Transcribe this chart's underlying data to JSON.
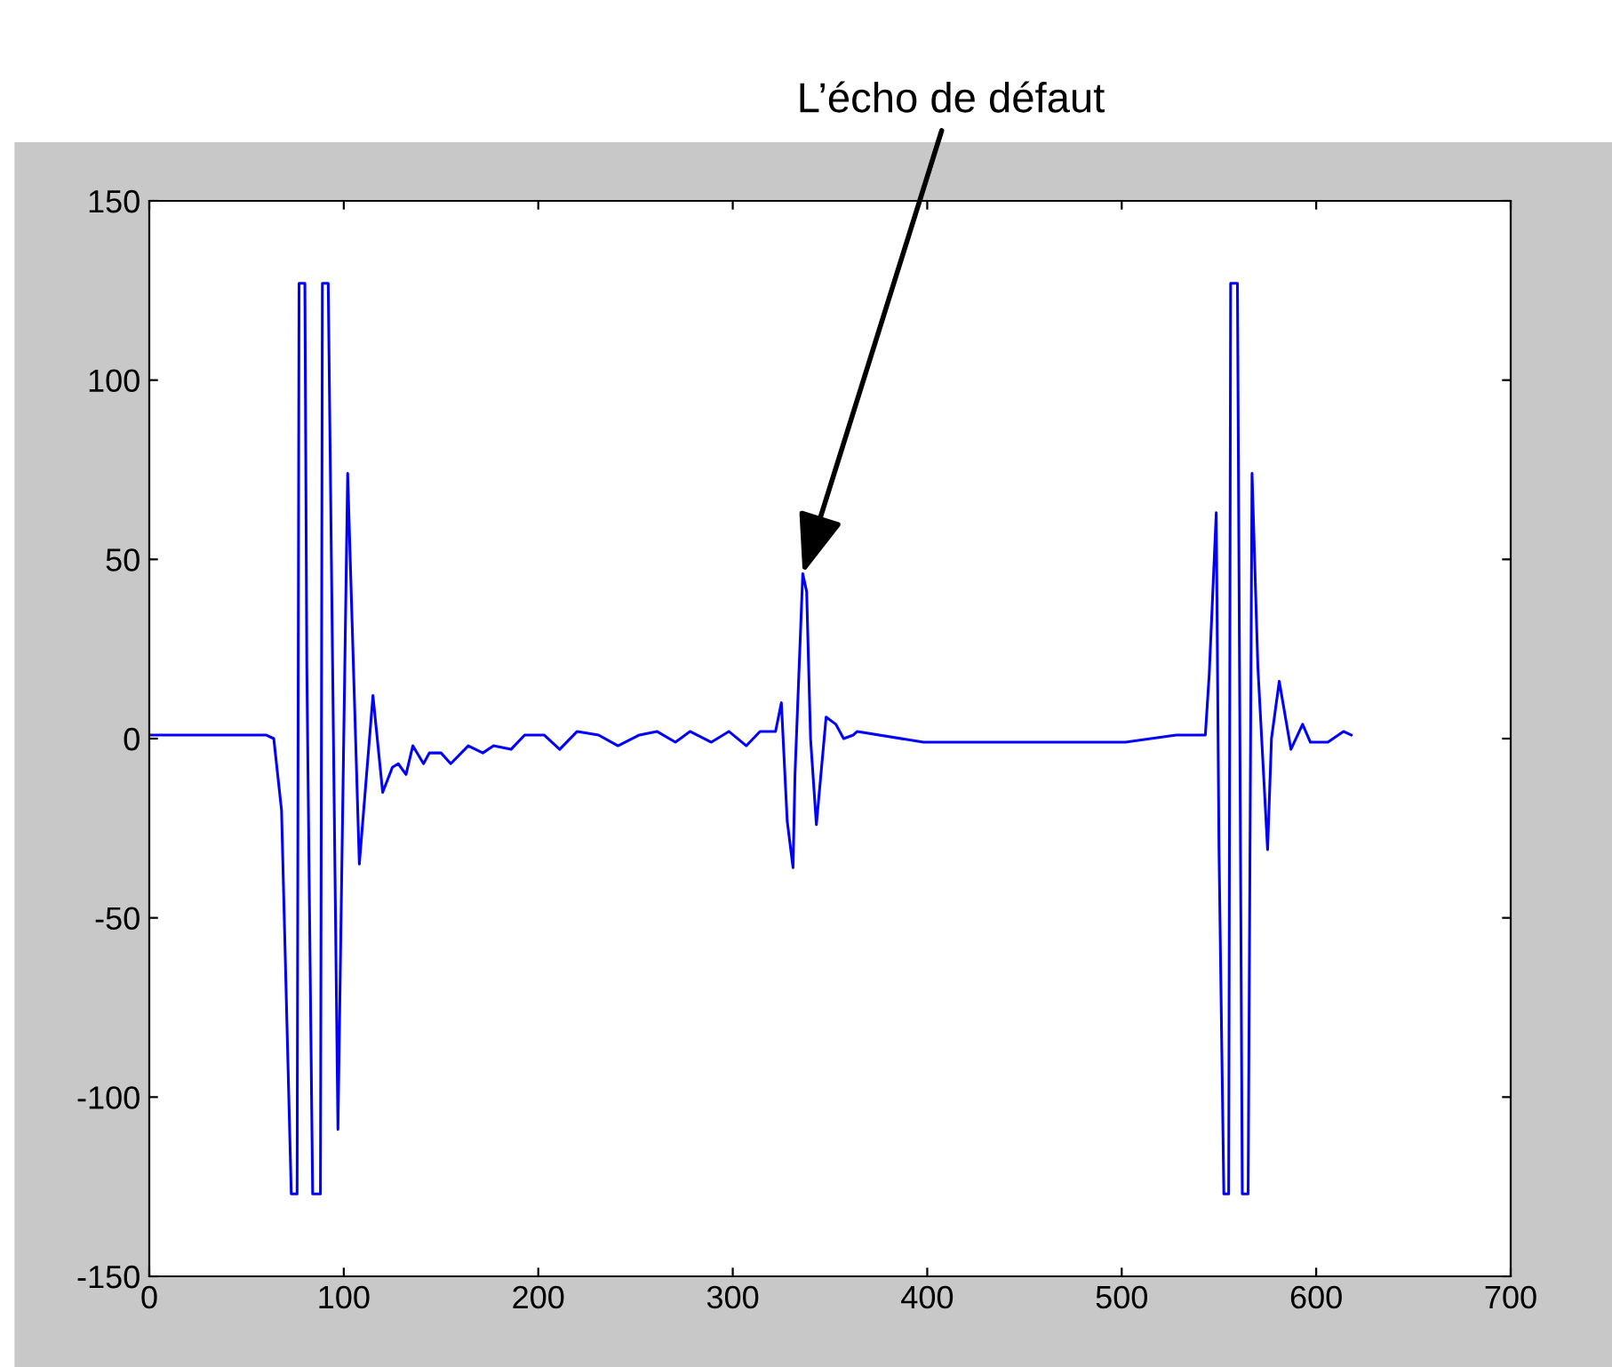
{
  "chart_data": {
    "type": "line",
    "x": [
      0,
      60,
      64,
      68,
      73,
      76,
      77,
      80,
      81,
      84,
      88,
      89,
      92,
      97,
      102,
      108,
      115,
      120,
      125,
      128,
      132,
      135.5,
      141,
      144,
      150,
      155,
      164,
      171.5,
      177,
      186,
      193,
      203,
      211,
      220,
      231,
      241,
      252,
      261,
      270.5,
      278,
      289,
      298,
      307,
      314,
      322,
      325,
      328,
      331,
      332,
      336,
      338,
      340,
      343,
      347,
      348,
      353,
      357,
      362,
      364,
      398,
      441,
      502,
      528,
      543,
      545,
      548.6,
      550,
      552.5,
      555,
      556,
      559.5,
      560.6,
      562,
      565,
      567,
      570,
      575,
      577,
      581,
      587,
      593,
      597,
      606,
      614,
      618
    ],
    "series": [
      {
        "color": "#0000ff",
        "values": [
          1,
          1,
          0,
          -20,
          -127,
          -127,
          127,
          127,
          20,
          -127,
          -127,
          127,
          127,
          -109,
          74,
          -35,
          12,
          -15,
          -8,
          -7,
          -10,
          -2,
          -7,
          -4,
          -4,
          -7,
          -2,
          -4,
          -2,
          -3,
          1,
          1,
          -3,
          2,
          1,
          -2,
          1,
          2,
          -1,
          2,
          -1,
          2,
          -2,
          2,
          2,
          10,
          -23,
          -36,
          -10,
          46,
          41,
          0,
          -24,
          0,
          6,
          4,
          0,
          1,
          2,
          -1,
          -1,
          -1,
          1,
          1,
          18,
          63,
          -30,
          -127,
          -127,
          127,
          127,
          17,
          -127,
          -127,
          74,
          20,
          -31,
          0,
          16,
          -3,
          4,
          -1,
          -1,
          2,
          1
        ]
      }
    ],
    "xlim": [
      0,
      700
    ],
    "xticks": [
      0,
      100,
      200,
      300,
      400,
      500,
      600,
      700
    ],
    "ylim": [
      -150,
      150
    ],
    "yticks": [
      -150,
      -100,
      -50,
      0,
      50,
      100,
      150
    ],
    "grid": false,
    "marker": "none",
    "line_style": "solid",
    "annotations": [
      {
        "text": "L’écho de défaut",
        "x": 336,
        "y": 46
      }
    ]
  }
}
